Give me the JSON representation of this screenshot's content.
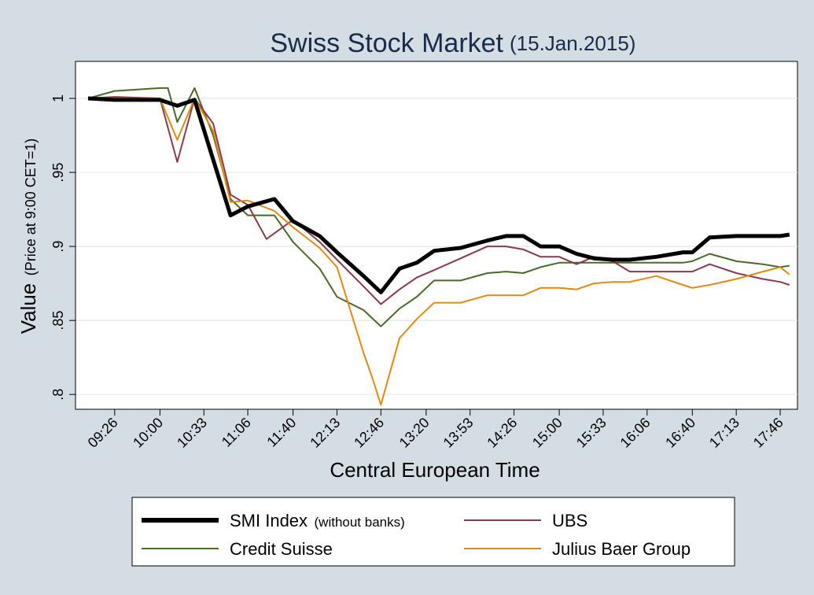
{
  "chart_data": {
    "type": "line",
    "title": "Swiss Stock Market",
    "subtitle": "(15.Jan.2015)",
    "xlabel": "Central European Time",
    "ylabel": "Value",
    "ylabel_note": "(Price at 9:00 CET=1)",
    "ylim": [
      0.79,
      1.025
    ],
    "y_ticks": [
      0.8,
      0.85,
      0.9,
      0.95,
      1
    ],
    "y_tick_labels": [
      ".8",
      ".85",
      ".9",
      ".95",
      "1"
    ],
    "x_tick_labels": [
      "09:26",
      "10:00",
      "10:33",
      "11:06",
      "11:40",
      "12:13",
      "12:46",
      "13:20",
      "13:53",
      "14:26",
      "15:00",
      "15:33",
      "16:06",
      "16:40",
      "17:13",
      "17:46"
    ],
    "x_start": "09:06",
    "grid": "horizontal",
    "legend_position": "bottom",
    "series": [
      {
        "name": "SMI Index",
        "name_note": "(without banks)",
        "color": "#000000",
        "width": 5,
        "x": [
          "09:06",
          "09:26",
          "10:00",
          "10:13",
          "10:26",
          "10:53",
          "11:06",
          "11:26",
          "11:40",
          "12:00",
          "12:13",
          "12:33",
          "12:46",
          "13:00",
          "13:13",
          "13:26",
          "13:46",
          "14:06",
          "14:20",
          "14:33",
          "14:46",
          "15:00",
          "15:13",
          "15:26",
          "15:40",
          "15:53",
          "16:13",
          "16:33",
          "16:40",
          "16:53",
          "17:13",
          "17:33",
          "17:46",
          "17:53"
        ],
        "y": [
          1.0,
          0.999,
          0.999,
          0.995,
          0.999,
          0.921,
          0.927,
          0.932,
          0.917,
          0.907,
          0.896,
          0.88,
          0.869,
          0.885,
          0.889,
          0.897,
          0.899,
          0.904,
          0.907,
          0.907,
          0.9,
          0.9,
          0.895,
          0.892,
          0.891,
          0.891,
          0.893,
          0.896,
          0.896,
          0.906,
          0.907,
          0.907,
          0.907,
          0.908
        ]
      },
      {
        "name": "UBS",
        "color": "#8a3a4a",
        "width": 2,
        "x": [
          "09:06",
          "09:26",
          "10:00",
          "10:13",
          "10:26",
          "10:40",
          "10:53",
          "11:06",
          "11:20",
          "11:40",
          "12:00",
          "12:13",
          "12:33",
          "12:46",
          "13:00",
          "13:13",
          "13:26",
          "13:46",
          "14:06",
          "14:20",
          "14:33",
          "14:46",
          "15:00",
          "15:13",
          "15:26",
          "15:40",
          "15:53",
          "16:13",
          "16:33",
          "16:40",
          "16:53",
          "17:13",
          "17:33",
          "17:46",
          "17:53"
        ],
        "y": [
          1.0,
          1.001,
          1.0,
          0.957,
          1.0,
          0.983,
          0.935,
          0.928,
          0.905,
          0.918,
          0.903,
          0.891,
          0.873,
          0.861,
          0.871,
          0.879,
          0.884,
          0.892,
          0.9,
          0.9,
          0.898,
          0.893,
          0.893,
          0.888,
          0.893,
          0.89,
          0.883,
          0.883,
          0.883,
          0.883,
          0.888,
          0.882,
          0.878,
          0.876,
          0.874
        ]
      },
      {
        "name": "Credit Suisse",
        "color": "#4a6a28",
        "width": 2,
        "x": [
          "09:06",
          "09:26",
          "10:00",
          "10:06",
          "10:13",
          "10:26",
          "10:40",
          "10:53",
          "11:06",
          "11:26",
          "11:40",
          "12:00",
          "12:13",
          "12:33",
          "12:46",
          "13:00",
          "13:13",
          "13:26",
          "13:46",
          "14:06",
          "14:20",
          "14:33",
          "14:46",
          "15:00",
          "15:13",
          "15:26",
          "15:40",
          "15:53",
          "16:13",
          "16:33",
          "16:40",
          "16:53",
          "17:13",
          "17:33",
          "17:46",
          "17:53"
        ],
        "y": [
          1.0,
          1.005,
          1.007,
          1.007,
          0.984,
          1.007,
          0.975,
          0.932,
          0.921,
          0.921,
          0.903,
          0.885,
          0.866,
          0.857,
          0.846,
          0.858,
          0.866,
          0.877,
          0.877,
          0.882,
          0.883,
          0.882,
          0.886,
          0.889,
          0.889,
          0.889,
          0.889,
          0.889,
          0.889,
          0.889,
          0.89,
          0.895,
          0.89,
          0.888,
          0.886,
          0.887
        ]
      },
      {
        "name": "Julius Baer Group",
        "color": "#e08a10",
        "width": 2,
        "x": [
          "09:06",
          "09:26",
          "10:00",
          "10:13",
          "10:26",
          "10:40",
          "10:53",
          "11:06",
          "11:26",
          "11:40",
          "12:00",
          "12:13",
          "12:33",
          "12:40",
          "12:46",
          "13:00",
          "13:13",
          "13:26",
          "13:46",
          "14:06",
          "14:20",
          "14:33",
          "14:46",
          "15:00",
          "15:13",
          "15:26",
          "15:40",
          "15:53",
          "16:13",
          "16:33",
          "16:40",
          "16:53",
          "17:13",
          "17:33",
          "17:46",
          "17:53"
        ],
        "y": [
          1.0,
          1.0,
          1.0,
          0.972,
          1.0,
          0.978,
          0.93,
          0.931,
          0.924,
          0.913,
          0.899,
          0.886,
          0.828,
          0.81,
          0.793,
          0.838,
          0.851,
          0.862,
          0.862,
          0.867,
          0.867,
          0.867,
          0.872,
          0.872,
          0.871,
          0.875,
          0.876,
          0.876,
          0.88,
          0.874,
          0.872,
          0.874,
          0.878,
          0.883,
          0.886,
          0.881
        ]
      }
    ]
  }
}
